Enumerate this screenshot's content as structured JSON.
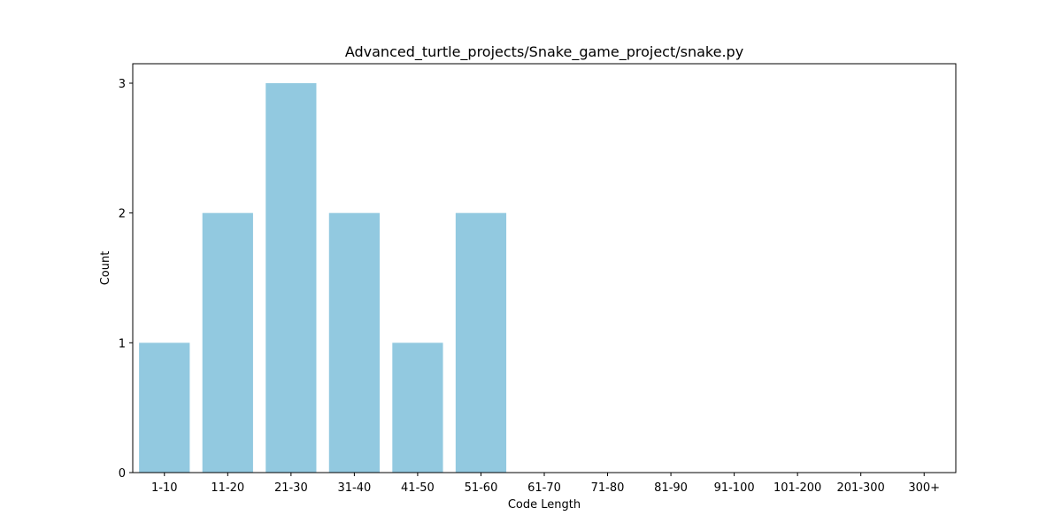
{
  "chart_data": {
    "type": "bar",
    "title": "Advanced_turtle_projects/Snake_game_project/snake.py",
    "xlabel": "Code Length",
    "ylabel": "Count",
    "categories": [
      "1-10",
      "11-20",
      "21-30",
      "31-40",
      "41-50",
      "51-60",
      "61-70",
      "71-80",
      "81-90",
      "91-100",
      "101-200",
      "201-300",
      "300+"
    ],
    "values": [
      1,
      2,
      3,
      2,
      1,
      2,
      0,
      0,
      0,
      0,
      0,
      0,
      0
    ],
    "yticks": [
      0,
      1,
      2,
      3
    ],
    "ylim": [
      0,
      3.15
    ],
    "grid": false,
    "bar_color": "#92c9e0"
  }
}
